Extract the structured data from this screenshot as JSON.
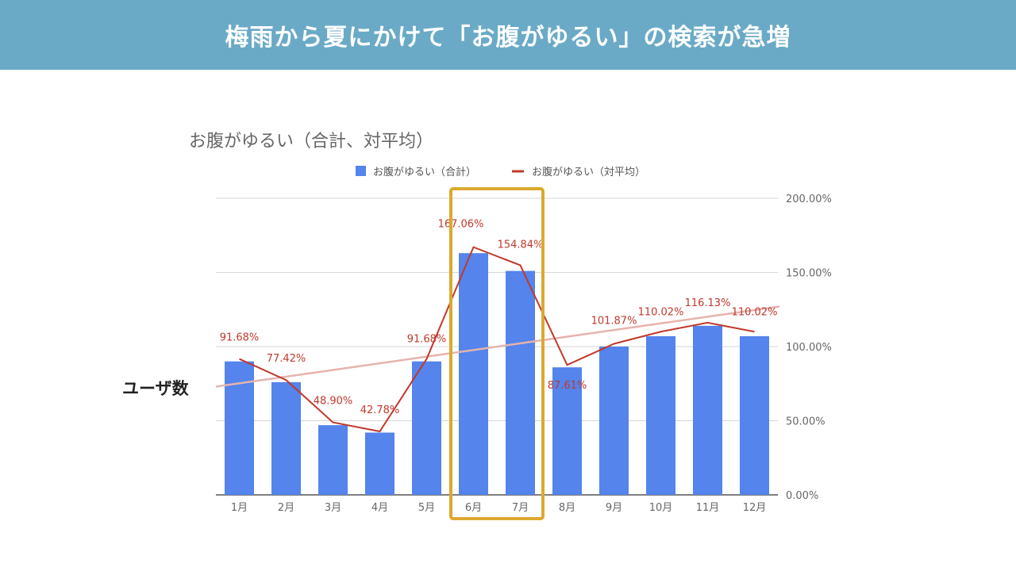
{
  "banner": {
    "title": "梅雨から夏にかけて「お腹がゆるい」の検索が急増"
  },
  "side_label": "ユーザ数",
  "chart_data": {
    "type": "bar",
    "title": "お腹がゆるい（合計、対平均）",
    "categories": [
      "1月",
      "2月",
      "3月",
      "4月",
      "5月",
      "6月",
      "7月",
      "8月",
      "9月",
      "10月",
      "11月",
      "12月"
    ],
    "series": [
      {
        "name": "お腹がゆるい（合計）",
        "type": "bar",
        "color": "#5484ec",
        "values": [
          90,
          76,
          47,
          42,
          90,
          163,
          151,
          86,
          100,
          107,
          114,
          107
        ]
      },
      {
        "name": "お腹がゆるい（対平均）",
        "type": "line",
        "color": "#c0392b",
        "values": [
          91.68,
          77.42,
          48.9,
          42.78,
          91.68,
          167.06,
          154.84,
          87.61,
          101.87,
          110.02,
          116.13,
          110.02
        ],
        "labels": [
          "91.68%",
          "77.42%",
          "48.90%",
          "42.78%",
          "91.68%",
          "167.06%",
          "154.84%",
          "87.61%",
          "101.87%",
          "110.02%",
          "116.13%",
          "110.02%"
        ]
      }
    ],
    "trendline": {
      "color": "#e6b3ad",
      "start": 73,
      "end": 127
    },
    "y_ticks": [
      "0.00%",
      "50.00%",
      "100.00%",
      "150.00%",
      "200.00%"
    ],
    "ylim": [
      0,
      200
    ],
    "y_axis_side": "right",
    "grid": true,
    "legend_position": "top",
    "highlight": {
      "categories": [
        "6月",
        "7月"
      ],
      "color": "#dca92e"
    }
  }
}
